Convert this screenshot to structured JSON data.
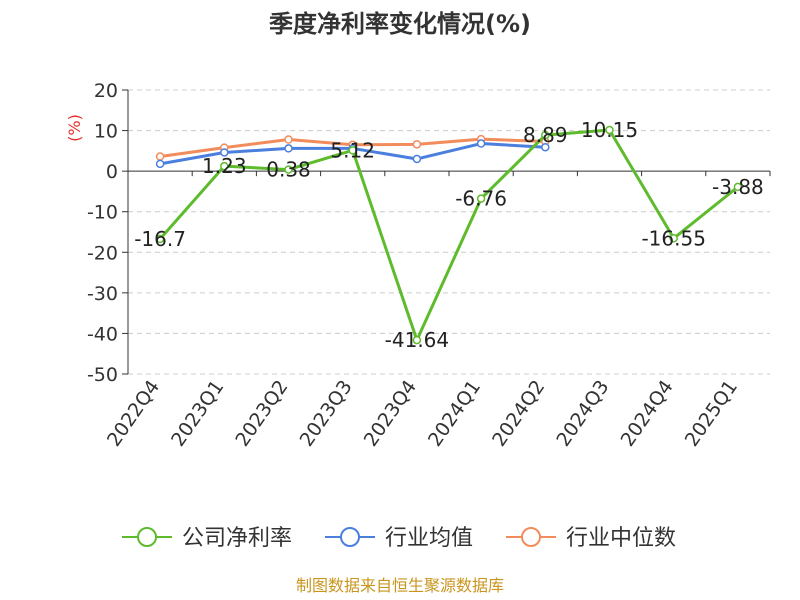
{
  "chart_data": {
    "type": "line",
    "title": "季度净利率变化情况(%)",
    "ylabel": "(%)",
    "categories": [
      "2022Q4",
      "2023Q1",
      "2023Q2",
      "2023Q3",
      "2023Q4",
      "2024Q1",
      "2024Q2",
      "2024Q3",
      "2024Q4",
      "2025Q1"
    ],
    "yticks": [
      "20",
      "10",
      "0",
      "-10",
      "-20",
      "-30",
      "-40",
      "-50"
    ],
    "ylim": [
      -50,
      20
    ],
    "grid": true,
    "legend_position": "bottom",
    "series": [
      {
        "name": "公司净利率",
        "color": "#5dbb2c",
        "values": [
          -16.7,
          1.23,
          0.38,
          5.12,
          -41.64,
          -6.76,
          8.89,
          10.15,
          -16.55,
          -3.88
        ],
        "labels": [
          "-16.7",
          "1.23",
          "0.38",
          "5.12",
          "-41.64",
          "-6.76",
          "8.89",
          "10.15",
          "-16.55",
          "-3.88"
        ]
      },
      {
        "name": "行业均值",
        "color": "#4a7fde",
        "values": [
          1.8,
          4.6,
          5.6,
          5.6,
          3.0,
          6.8,
          5.9,
          null,
          null,
          null
        ]
      },
      {
        "name": "行业中位数",
        "color": "#f28c5c",
        "values": [
          3.6,
          5.8,
          7.8,
          6.5,
          6.6,
          7.9,
          7.3,
          null,
          null,
          null
        ]
      }
    ]
  },
  "footer": {
    "source": "制图数据来自恒生聚源数据库"
  }
}
